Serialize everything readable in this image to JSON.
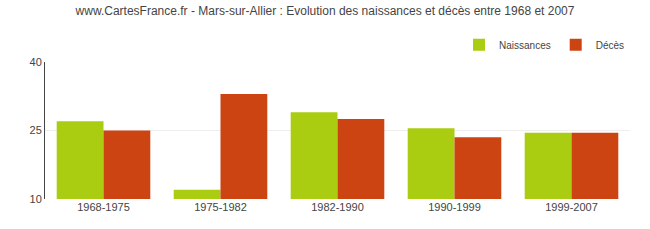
{
  "chart_data": {
    "type": "bar",
    "title": "www.CartesFrance.fr - Mars-sur-Allier : Evolution des naissances et décès entre 1968 et 2007",
    "categories": [
      "1968-1975",
      "1975-1982",
      "1982-1990",
      "1990-1999",
      "1999-2007"
    ],
    "series": [
      {
        "name": "Naissances",
        "color": "#aacc11",
        "values": [
          27.0,
          12.0,
          29.0,
          25.5,
          24.5
        ]
      },
      {
        "name": "Décès",
        "color": "#cc4411",
        "values": [
          25.0,
          33.0,
          27.5,
          23.5,
          24.5
        ]
      }
    ],
    "ylim": [
      10,
      40
    ],
    "yticks": [
      10,
      25,
      40
    ],
    "grid": true,
    "legend": "upper right"
  }
}
